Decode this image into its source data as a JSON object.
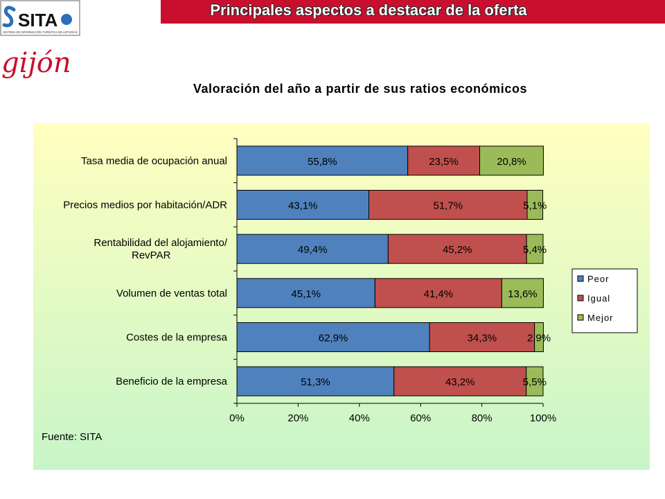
{
  "header": {
    "title": "Principales aspectos a destacar de la oferta",
    "logo_text": "SITA",
    "logo_caption": "SISTEMA DE INFORMACIÓN TURÍSTICA DE ASTURIAS",
    "city_logo_text": "gijón"
  },
  "colors": {
    "banner": "#c8102e",
    "panel_top": "#ffffc0",
    "panel_bottom": "#c8f5c8",
    "peor": "#4f81bd",
    "igual": "#c0504d",
    "mejor": "#9bbb59"
  },
  "chart_data": {
    "type": "bar",
    "orientation": "horizontal",
    "stacked": true,
    "title": "Valoración del año a partir de sus ratios económicos",
    "categories": [
      "Tasa media de ocupación anual",
      "Precios medios por habitación/ADR",
      "Rentabilidad del alojamiento/ RevPAR",
      "Volumen de ventas total",
      "Costes de la empresa",
      "Beneficio de la empresa"
    ],
    "category_lines": [
      [
        "Tasa media de ocupación anual"
      ],
      [
        "Precios medios por habitación/ADR"
      ],
      [
        "Rentabilidad del alojamiento/",
        "RevPAR"
      ],
      [
        "Volumen de ventas total"
      ],
      [
        "Costes de la empresa"
      ],
      [
        "Beneficio de la empresa"
      ]
    ],
    "series": [
      {
        "name": "Peor",
        "values": [
          55.8,
          43.1,
          49.4,
          45.1,
          62.9,
          51.3
        ],
        "labels": [
          "55,8%",
          "43,1%",
          "49,4%",
          "45,1%",
          "62,9%",
          "51,3%"
        ]
      },
      {
        "name": "Igual",
        "values": [
          23.5,
          51.7,
          45.2,
          41.4,
          34.3,
          43.2
        ],
        "labels": [
          "23,5%",
          "51,7%",
          "45,2%",
          "41,4%",
          "34,3%",
          "43,2%"
        ]
      },
      {
        "name": "Mejor",
        "values": [
          20.8,
          5.1,
          5.4,
          13.6,
          2.9,
          5.5
        ],
        "labels": [
          "20,8%",
          "5,1%",
          "5,4%",
          "13,6%",
          "2,9%",
          "5,5%"
        ]
      }
    ],
    "xlim": [
      0,
      100
    ],
    "x_ticks": [
      "0%",
      "20%",
      "40%",
      "60%",
      "80%",
      "100%"
    ],
    "legend_position": "right",
    "source": "Fuente: SITA"
  }
}
